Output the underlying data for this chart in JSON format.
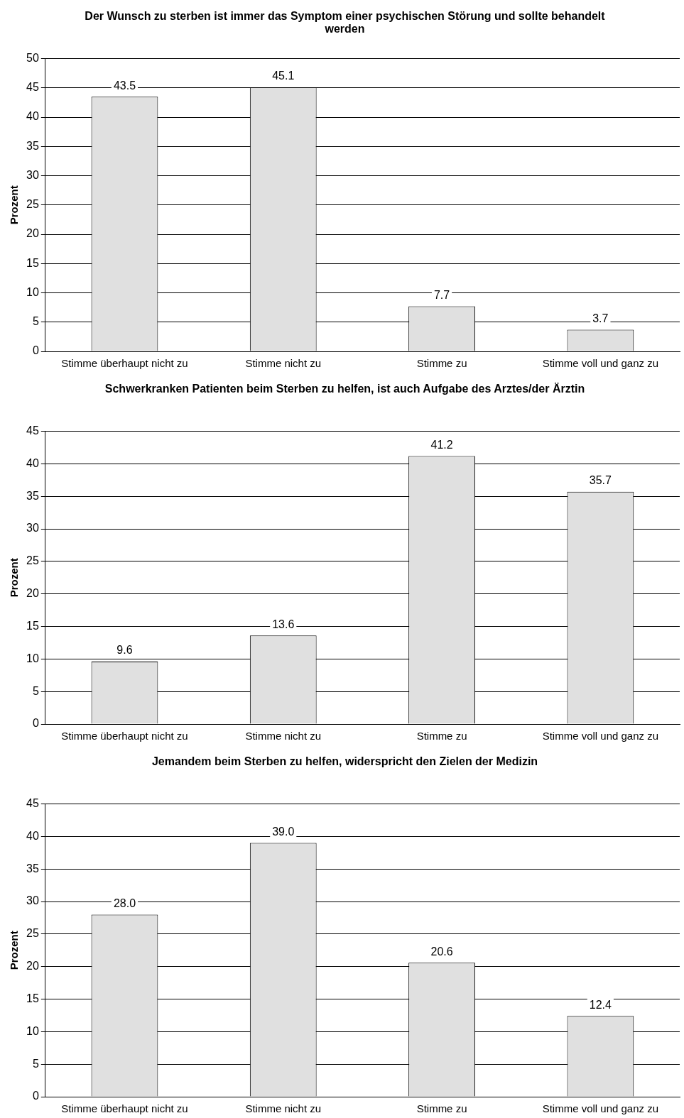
{
  "chart_data": [
    {
      "type": "bar",
      "title": "Der Wunsch zu sterben ist immer das Symptom einer psychischen Störung und sollte behandelt werden",
      "ylabel": "Prozent",
      "categories": [
        "Stimme überhaupt nicht zu",
        "Stimme nicht zu",
        "Stimme zu",
        "Stimme voll und ganz zu"
      ],
      "values": [
        43.5,
        45.1,
        7.7,
        3.7
      ],
      "value_labels": [
        "43.5",
        "45.1",
        "7.7",
        "3.7"
      ],
      "color": "#e0e0e0",
      "ylim": [
        0,
        50
      ],
      "yticks": [
        0,
        5,
        10,
        15,
        20,
        25,
        30,
        35,
        40,
        45,
        50
      ],
      "grid": "y",
      "legend": false
    },
    {
      "type": "bar",
      "title": "Schwerkranken Patienten beim Sterben zu helfen, ist auch Aufgabe des Arztes/der Ärztin",
      "ylabel": "Prozent",
      "categories": [
        "Stimme überhaupt nicht zu",
        "Stimme nicht zu",
        "Stimme zu",
        "Stimme voll und ganz zu"
      ],
      "values": [
        9.6,
        13.6,
        41.2,
        35.7
      ],
      "value_labels": [
        "9.6",
        "13.6",
        "41.2",
        "35.7"
      ],
      "color": "#e0e0e0",
      "ylim": [
        0,
        45
      ],
      "yticks": [
        0,
        5,
        10,
        15,
        20,
        25,
        30,
        35,
        40,
        45
      ],
      "grid": "y",
      "legend": false
    },
    {
      "type": "bar",
      "title": "Jemandem beim Sterben zu helfen, widerspricht den Zielen der Medizin",
      "ylabel": "Prozent",
      "categories": [
        "Stimme überhaupt nicht zu",
        "Stimme nicht zu",
        "Stimme zu",
        "Stimme voll und ganz zu"
      ],
      "values": [
        28.0,
        39.0,
        20.6,
        12.4
      ],
      "value_labels": [
        "28.0",
        "39.0",
        "20.6",
        "12.4"
      ],
      "color": "#e0e0e0",
      "ylim": [
        0,
        45
      ],
      "yticks": [
        0,
        5,
        10,
        15,
        20,
        25,
        30,
        35,
        40,
        45
      ],
      "grid": "y",
      "legend": false
    }
  ]
}
